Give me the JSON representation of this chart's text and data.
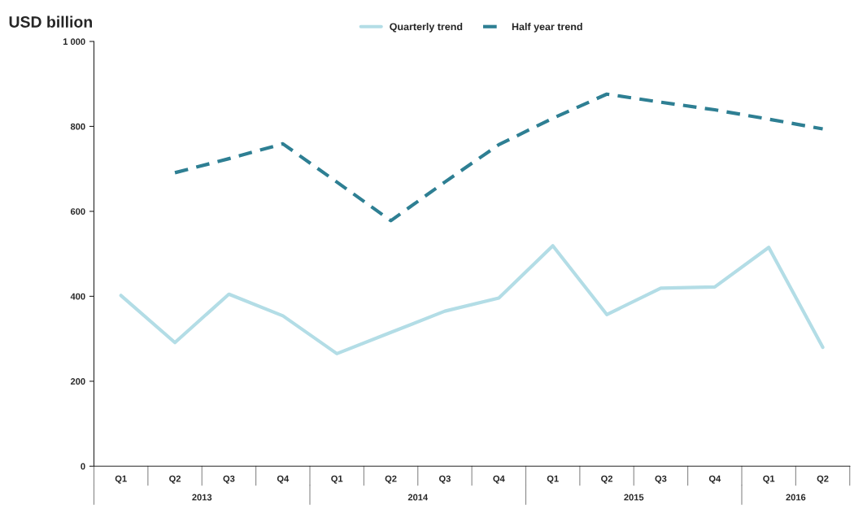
{
  "chart_data": {
    "type": "line",
    "ylabel": "USD billion",
    "categories": [
      "Q1",
      "Q2",
      "Q3",
      "Q4",
      "Q1",
      "Q2",
      "Q3",
      "Q4",
      "Q1",
      "Q2",
      "Q3",
      "Q4",
      "Q1",
      "Q2"
    ],
    "series": [
      {
        "name": "Quarterly trend",
        "color": "#b3dde6",
        "line_style": "solid",
        "values": [
          402,
          291,
          405,
          354,
          265,
          315,
          365,
          396,
          519,
          357,
          419,
          422,
          515,
          280
        ]
      },
      {
        "name": "Half year trend",
        "color": "#2e7f93",
        "line_style": "dashed",
        "values": [
          null,
          691,
          724,
          759,
          669,
          578,
          669,
          757,
          819,
          876,
          857,
          839,
          817,
          794
        ]
      }
    ],
    "ylim": [
      0,
      1000
    ],
    "yticks": [
      0,
      200,
      400,
      600,
      800,
      {
        "value": 1000,
        "label": "1 000"
      }
    ],
    "annotations": [
      "2013",
      "2014",
      "2015",
      "2016"
    ],
    "grid": false,
    "legend": "top",
    "marker": "none"
  }
}
